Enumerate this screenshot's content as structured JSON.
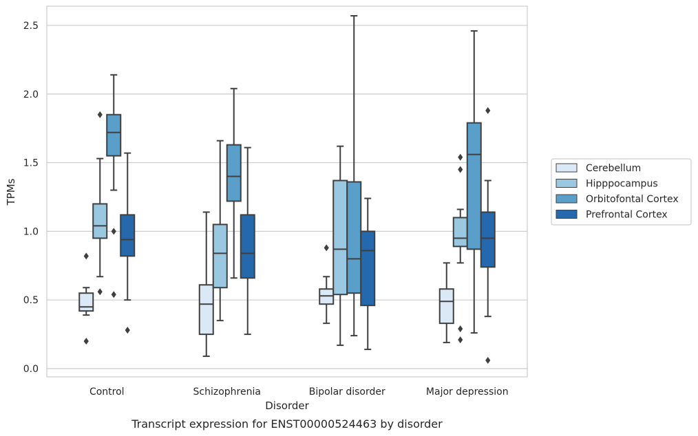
{
  "chart_data": {
    "type": "box",
    "title": "",
    "caption": "Transcript expression for ENST00000524463 by disorder",
    "xlabel": "Disorder",
    "ylabel": "TPMs",
    "ylim": [
      -0.06,
      2.64
    ],
    "yticks": [
      0.0,
      0.5,
      1.0,
      1.5,
      2.0,
      2.5
    ],
    "ytick_labels": [
      "0.0",
      "0.5",
      "1.0",
      "1.5",
      "2.0",
      "2.5"
    ],
    "grid": "horizontal",
    "legend_position": "right",
    "categories": [
      "Control",
      "Schizophrenia",
      "Bipolar disorder",
      "Major depression"
    ],
    "series": [
      {
        "name": "Cerebellum",
        "color": "#dbe9f6",
        "boxes": [
          {
            "whisker_low": 0.39,
            "q1": 0.42,
            "median": 0.45,
            "q3": 0.55,
            "whisker_high": 0.59,
            "outliers": [
              0.82,
              0.2
            ]
          },
          {
            "whisker_low": 0.09,
            "q1": 0.25,
            "median": 0.47,
            "q3": 0.61,
            "whisker_high": 1.14,
            "outliers": []
          },
          {
            "whisker_low": 0.33,
            "q1": 0.47,
            "median": 0.53,
            "q3": 0.58,
            "whisker_high": 0.67,
            "outliers": [
              0.88
            ]
          },
          {
            "whisker_low": 0.19,
            "q1": 0.33,
            "median": 0.49,
            "q3": 0.58,
            "whisker_high": 0.77,
            "outliers": []
          }
        ]
      },
      {
        "name": "Hipppocampus",
        "color": "#9ac8e0",
        "boxes": [
          {
            "whisker_low": 0.67,
            "q1": 0.95,
            "median": 1.04,
            "q3": 1.2,
            "whisker_high": 1.53,
            "outliers": [
              1.85,
              0.56
            ]
          },
          {
            "whisker_low": 0.35,
            "q1": 0.59,
            "median": 0.84,
            "q3": 1.05,
            "whisker_high": 1.66,
            "outliers": []
          },
          {
            "whisker_low": 0.17,
            "q1": 0.54,
            "median": 0.87,
            "q3": 1.37,
            "whisker_high": 1.62,
            "outliers": []
          },
          {
            "whisker_low": 0.77,
            "q1": 0.89,
            "median": 0.95,
            "q3": 1.1,
            "whisker_high": 1.16,
            "outliers": [
              1.54,
              1.45,
              0.29,
              0.21
            ]
          }
        ]
      },
      {
        "name": "Orbitofontal Cortex",
        "color": "#5a9fc9",
        "boxes": [
          {
            "whisker_low": 1.3,
            "q1": 1.55,
            "median": 1.72,
            "q3": 1.85,
            "whisker_high": 2.14,
            "outliers": [
              1.0,
              0.54
            ]
          },
          {
            "whisker_low": 0.66,
            "q1": 1.22,
            "median": 1.4,
            "q3": 1.63,
            "whisker_high": 2.04,
            "outliers": []
          },
          {
            "whisker_low": 0.24,
            "q1": 0.55,
            "median": 0.8,
            "q3": 1.36,
            "whisker_high": 2.57,
            "outliers": []
          },
          {
            "whisker_low": 0.26,
            "q1": 0.87,
            "median": 1.56,
            "q3": 1.79,
            "whisker_high": 2.46,
            "outliers": []
          }
        ]
      },
      {
        "name": "Prefrontal Cortex",
        "color": "#2568ab",
        "boxes": [
          {
            "whisker_low": 0.5,
            "q1": 0.82,
            "median": 0.94,
            "q3": 1.12,
            "whisker_high": 1.57,
            "outliers": [
              0.28
            ]
          },
          {
            "whisker_low": 0.25,
            "q1": 0.66,
            "median": 0.84,
            "q3": 1.12,
            "whisker_high": 1.61,
            "outliers": []
          },
          {
            "whisker_low": 0.14,
            "q1": 0.46,
            "median": 0.86,
            "q3": 1.0,
            "whisker_high": 1.24,
            "outliers": []
          },
          {
            "whisker_low": 0.38,
            "q1": 0.74,
            "median": 0.95,
            "q3": 1.14,
            "whisker_high": 1.37,
            "outliers": [
              1.88,
              0.06
            ]
          }
        ]
      }
    ]
  }
}
